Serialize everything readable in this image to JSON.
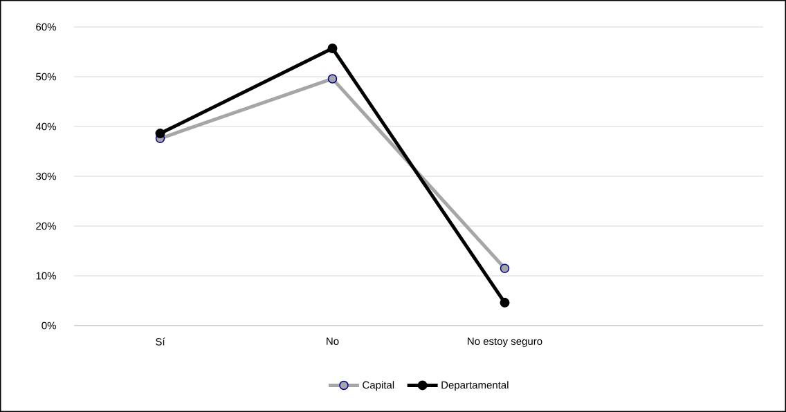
{
  "chart_data": {
    "type": "line",
    "categories": [
      "Sí",
      "No",
      "No estoy seguro",
      null
    ],
    "series": [
      {
        "name": "Capital",
        "color": "#a6a6a6",
        "values": [
          37.6,
          49.6,
          11.5,
          null
        ]
      },
      {
        "name": "Departamental",
        "color": "#000000",
        "values": [
          38.6,
          55.7,
          4.6,
          null
        ]
      }
    ],
    "ylim": [
      0,
      60
    ],
    "yticks": [
      {
        "value": 0,
        "label": "0%"
      },
      {
        "value": 10,
        "label": "10%"
      },
      {
        "value": 20,
        "label": "20%"
      },
      {
        "value": 30,
        "label": "30%"
      },
      {
        "value": 40,
        "label": "40%"
      },
      {
        "value": 50,
        "label": "50%"
      },
      {
        "value": 60,
        "label": "60%"
      }
    ],
    "grid": "y",
    "legend": "bottom",
    "marker": "circle",
    "line_style": "solid"
  }
}
